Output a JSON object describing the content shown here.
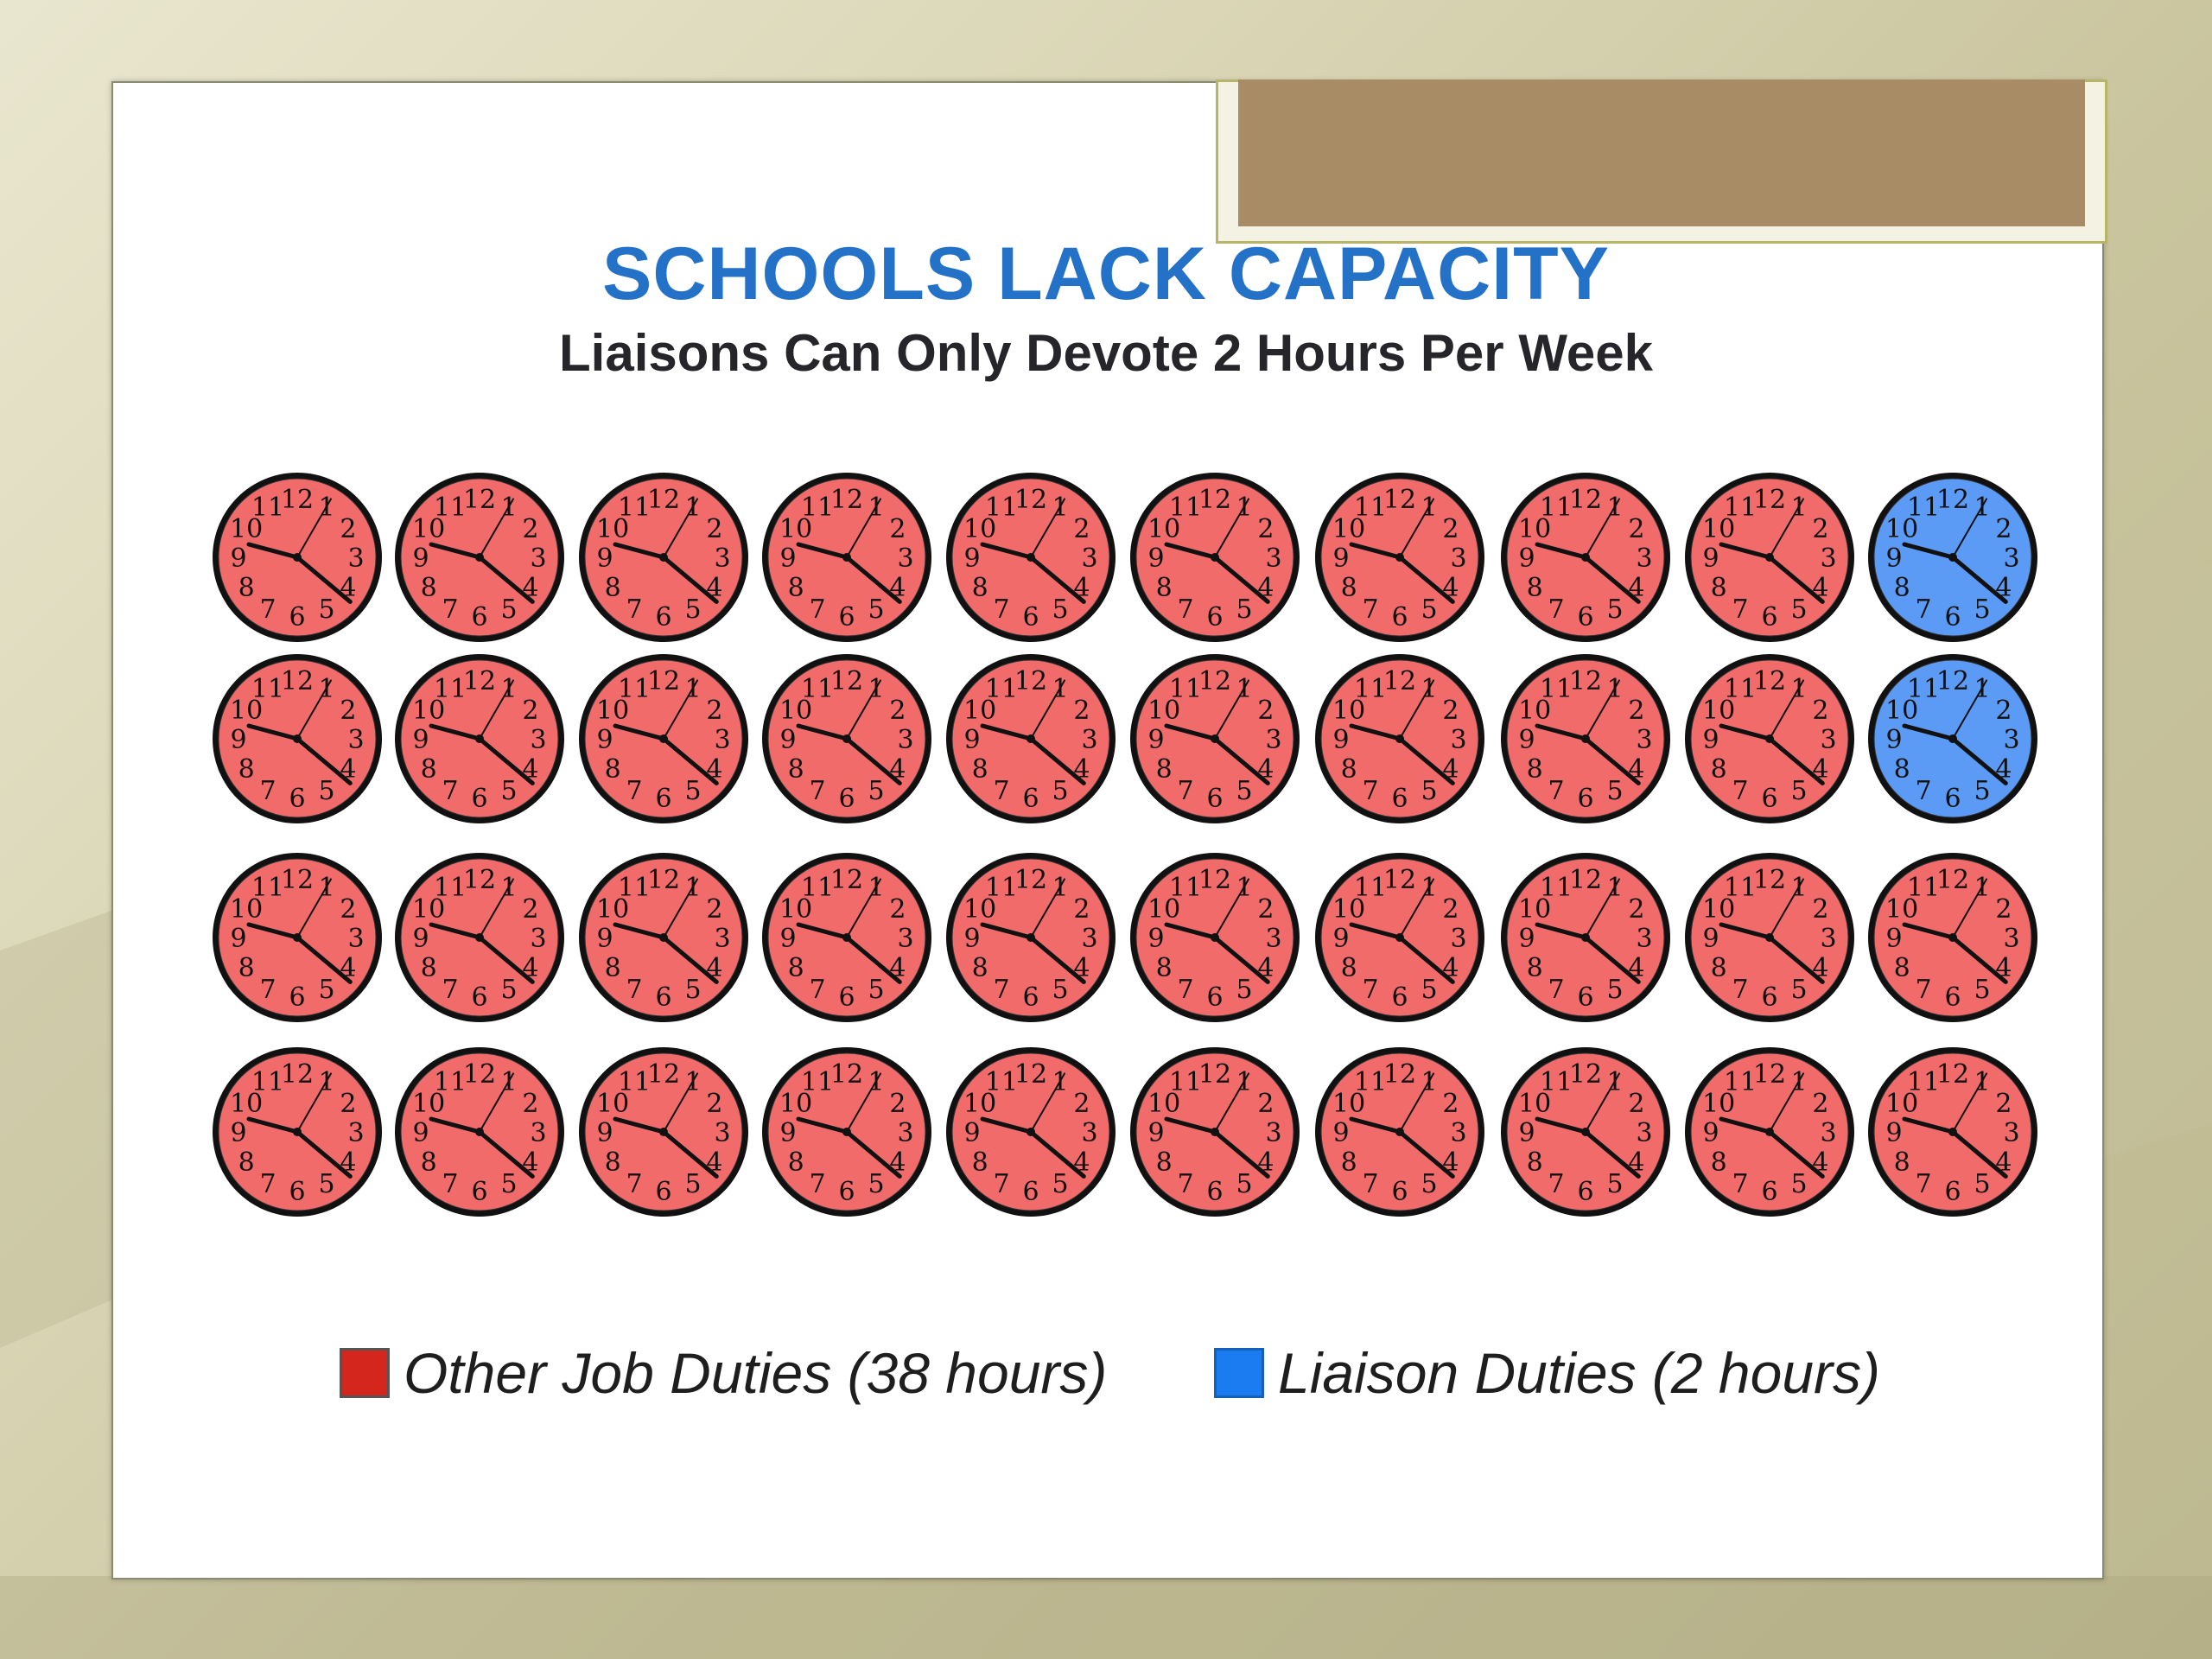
{
  "slide": {
    "title": "SCHOOLS LACK CAPACITY",
    "subtitle": "Liaisons Can Only Devote 2 Hours Per Week"
  },
  "colors": {
    "other": "#f26b6b",
    "liaison": "#5b9bf5",
    "title": "#2471c8",
    "legend_other": "#d4261c",
    "legend_liaison": "#1a7cf0"
  },
  "clock_numerals": [
    "12",
    "1",
    "2",
    "3",
    "4",
    "5",
    "6",
    "7",
    "8",
    "9",
    "10",
    "11"
  ],
  "chart_data": {
    "type": "pictogram",
    "title": "SCHOOLS LACK CAPACITY",
    "subtitle": "Liaisons Can Only Devote 2 Hours Per Week",
    "icon": "clock-icon",
    "unit": "hours",
    "grid": {
      "rows": 4,
      "columns": 10
    },
    "categories": [
      "Other Job Duties",
      "Liaison Duties"
    ],
    "values": [
      38,
      2
    ],
    "cells": [
      [
        "other",
        "other",
        "other",
        "other",
        "other",
        "other",
        "other",
        "other",
        "other",
        "liaison"
      ],
      [
        "other",
        "other",
        "other",
        "other",
        "other",
        "other",
        "other",
        "other",
        "other",
        "liaison"
      ],
      [
        "other",
        "other",
        "other",
        "other",
        "other",
        "other",
        "other",
        "other",
        "other",
        "other"
      ],
      [
        "other",
        "other",
        "other",
        "other",
        "other",
        "other",
        "other",
        "other",
        "other",
        "other"
      ]
    ],
    "legend": [
      {
        "key": "other",
        "label": "Other Job Duties (38 hours)"
      },
      {
        "key": "liaison",
        "label": "Liaison Duties (2 hours)"
      }
    ],
    "legend_position": "bottom"
  }
}
